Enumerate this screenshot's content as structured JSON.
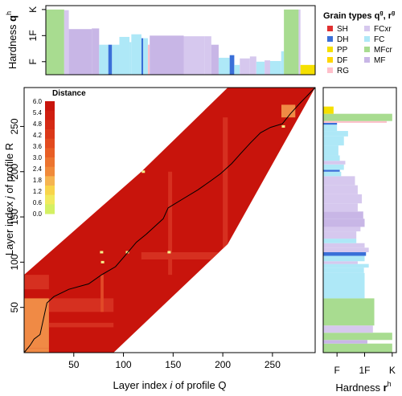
{
  "colors": {
    "SH": "#e03030",
    "DH": "#3a6fd8",
    "PP": "#f5e000",
    "DF": "#ffd700",
    "RG": "#ffc0cb",
    "FCxr": "#d6c8ee",
    "FC": "#aee8f7",
    "MFcr": "#a8dc90",
    "MF": "#c8b6e6",
    "frame": "#888888",
    "path": "#000000"
  },
  "chart_data": [
    {
      "id": "heatmap",
      "type": "heatmap",
      "xlabel_parts": [
        "Layer index ",
        "i",
        " of profile Q"
      ],
      "ylabel_parts": [
        "Layer index ",
        "j",
        " of profile R"
      ],
      "xticks": [
        "50",
        "100",
        "150",
        "200",
        "250"
      ],
      "xtick_values": [
        50,
        100,
        150,
        200,
        250
      ],
      "yticks": [
        "50",
        "100",
        "150",
        "200",
        "250"
      ],
      "ytick_values": [
        50,
        100,
        150,
        200,
        250
      ],
      "xlim": [
        0,
        293
      ],
      "ylim": [
        0,
        293
      ],
      "band_polygon": [
        [
          0,
          0
        ],
        [
          90,
          0
        ],
        [
          205,
          120
        ],
        [
          293,
          293
        ],
        [
          205,
          293
        ],
        [
          118,
          200
        ],
        [
          0,
          86
        ]
      ],
      "base_color": "#c8140c",
      "block_regions": [
        {
          "x": [
            0,
            25
          ],
          "y": [
            5,
            60
          ],
          "color": "#f08a45"
        },
        {
          "x": [
            0,
            25
          ],
          "y": [
            0,
            5
          ],
          "color": "#f08a45"
        },
        {
          "x": [
            259,
            273
          ],
          "y": [
            260,
            274
          ],
          "color": "#f08a45"
        },
        {
          "x": [
            25,
            90
          ],
          "y": [
            45,
            60
          ],
          "color": "#d63020"
        },
        {
          "x": [
            25,
            90
          ],
          "y": [
            28,
            33
          ],
          "color": "#d63020"
        },
        {
          "x": [
            118,
            205
          ],
          "y": [
            103,
            111
          ],
          "color": "#d63020"
        },
        {
          "x": [
            145,
            149
          ],
          "y": [
            86,
            200
          ],
          "color": "#d63020"
        },
        {
          "x": [
            200,
            205
          ],
          "y": [
            100,
            260
          ],
          "color": "#d63020"
        },
        {
          "x": [
            77,
            80
          ],
          "y": [
            45,
            86
          ],
          "color": "#e24a28"
        },
        {
          "x": [
            0,
            25
          ],
          "y": [
            70,
            86
          ],
          "color": "#d63020"
        }
      ],
      "highlight_points": [
        {
          "x": 104,
          "y": 111,
          "color": "#f5f08a"
        },
        {
          "x": 78,
          "y": 111,
          "color": "#f5f08a"
        },
        {
          "x": 146,
          "y": 111,
          "color": "#f5f08a"
        },
        {
          "x": 261,
          "y": 250,
          "color": "#f5f08a"
        },
        {
          "x": 79,
          "y": 100,
          "color": "#f5f08a"
        },
        {
          "x": 120,
          "y": 200,
          "color": "#f5f08a"
        }
      ],
      "path": [
        [
          0,
          0
        ],
        [
          6,
          8
        ],
        [
          10,
          15
        ],
        [
          16,
          20
        ],
        [
          23,
          55
        ],
        [
          30,
          62
        ],
        [
          45,
          70
        ],
        [
          65,
          76
        ],
        [
          78,
          86
        ],
        [
          92,
          95
        ],
        [
          103,
          109
        ],
        [
          113,
          122
        ],
        [
          123,
          131
        ],
        [
          133,
          141
        ],
        [
          140,
          148
        ],
        [
          145,
          160
        ],
        [
          160,
          170
        ],
        [
          175,
          180
        ],
        [
          188,
          190
        ],
        [
          198,
          198
        ],
        [
          209,
          209
        ],
        [
          218,
          220
        ],
        [
          228,
          232
        ],
        [
          238,
          243
        ],
        [
          248,
          249
        ],
        [
          260,
          253
        ],
        [
          268,
          264
        ],
        [
          278,
          276
        ],
        [
          293,
          293
        ]
      ]
    },
    {
      "id": "legend-colorbar",
      "type": "colorbar",
      "title": "Distance",
      "ticks": [
        "6.0",
        "5.4",
        "4.8",
        "4.2",
        "3.6",
        "3.0",
        "2.4",
        "1.8",
        "1.2",
        "0.6",
        "0.0"
      ],
      "tick_values": [
        6.0,
        5.4,
        4.8,
        4.2,
        3.6,
        3.0,
        2.4,
        1.8,
        1.2,
        0.6,
        0.0
      ],
      "segments": [
        "#c8140c",
        "#cf1e10",
        "#d52a14",
        "#db3818",
        "#e24a1e",
        "#e85e25",
        "#ec742f",
        "#f08a3a",
        "#f5b450",
        "#f8d44a",
        "#f1ea5e",
        "#d4f063"
      ]
    },
    {
      "id": "top-profile",
      "type": "bar",
      "ylabel_main": "Hardness ",
      "ylabel_sym": "q",
      "ylabel_sup": "h",
      "yticks": [
        "F",
        "1F",
        "K"
      ],
      "ytick_values": [
        1,
        3,
        5
      ],
      "ylim": [
        0,
        5.3
      ],
      "xlim": [
        0,
        293
      ],
      "layers": [
        {
          "from": 0,
          "to": 20,
          "h": 5.0,
          "grain": "MFcr"
        },
        {
          "from": 20,
          "to": 25,
          "h": 4.95,
          "grain": "FCxr"
        },
        {
          "from": 25,
          "to": 50,
          "h": 3.5,
          "grain": "MF"
        },
        {
          "from": 50,
          "to": 58,
          "h": 3.55,
          "grain": "MF"
        },
        {
          "from": 58,
          "to": 68,
          "h": 2.3,
          "grain": "FC"
        },
        {
          "from": 68,
          "to": 72,
          "h": 2.3,
          "grain": "DH"
        },
        {
          "from": 72,
          "to": 80,
          "h": 2.3,
          "grain": "FC"
        },
        {
          "from": 80,
          "to": 91,
          "h": 2.9,
          "grain": "FC"
        },
        {
          "from": 91,
          "to": 93,
          "h": 2.5,
          "grain": "FC"
        },
        {
          "from": 93,
          "to": 104,
          "h": 3.1,
          "grain": "FC"
        },
        {
          "from": 104,
          "to": 106,
          "h": 2.8,
          "grain": "DH"
        },
        {
          "from": 106,
          "to": 111,
          "h": 2.8,
          "grain": "FC"
        },
        {
          "from": 111,
          "to": 113,
          "h": 2.3,
          "grain": "RG"
        },
        {
          "from": 113,
          "to": 150,
          "h": 3.0,
          "grain": "MF"
        },
        {
          "from": 150,
          "to": 173,
          "h": 2.95,
          "grain": "FCxr"
        },
        {
          "from": 173,
          "to": 180,
          "h": 2.95,
          "grain": "FCxr"
        },
        {
          "from": 180,
          "to": 188,
          "h": 2.3,
          "grain": "MF"
        },
        {
          "from": 188,
          "to": 200,
          "h": 1.3,
          "grain": "FC"
        },
        {
          "from": 200,
          "to": 205,
          "h": 1.5,
          "grain": "DH"
        },
        {
          "from": 205,
          "to": 211,
          "h": 0.75,
          "grain": "FC"
        },
        {
          "from": 211,
          "to": 222,
          "h": 1.25,
          "grain": "FCxr"
        },
        {
          "from": 222,
          "to": 229,
          "h": 1.4,
          "grain": "FCxr"
        },
        {
          "from": 229,
          "to": 238,
          "h": 1.0,
          "grain": "FC"
        },
        {
          "from": 238,
          "to": 244,
          "h": 1.1,
          "grain": "FCxr"
        },
        {
          "from": 244,
          "to": 256,
          "h": 1.05,
          "grain": "FC"
        },
        {
          "from": 256,
          "to": 259,
          "h": 1.8,
          "grain": "FC"
        },
        {
          "from": 259,
          "to": 275,
          "h": 5.0,
          "grain": "MFcr"
        },
        {
          "from": 275,
          "to": 277,
          "h": 5.0,
          "grain": "FCxr"
        },
        {
          "from": 277,
          "to": 293,
          "h": 0.75,
          "grain": "PP"
        }
      ]
    },
    {
      "id": "right-profile",
      "type": "bar",
      "xlabel_main": "Hardness ",
      "xlabel_sym": "r",
      "xlabel_sup": "h",
      "xticks": [
        "F",
        "1F",
        "K"
      ],
      "xtick_values": [
        1,
        3,
        5
      ],
      "xlim": [
        0,
        5.3
      ],
      "ylim": [
        0,
        293
      ],
      "layers": [
        {
          "from": 0,
          "to": 10,
          "h": 5.0,
          "grain": "MFcr"
        },
        {
          "from": 10,
          "to": 14,
          "h": 3.2,
          "grain": "MF"
        },
        {
          "from": 14,
          "to": 22,
          "h": 5.0,
          "grain": "MFcr"
        },
        {
          "from": 22,
          "to": 30,
          "h": 3.6,
          "grain": "FCxr"
        },
        {
          "from": 30,
          "to": 60,
          "h": 3.7,
          "grain": "MFcr"
        },
        {
          "from": 60,
          "to": 88,
          "h": 3.0,
          "grain": "FC"
        },
        {
          "from": 88,
          "to": 94,
          "h": 2.95,
          "grain": "FC"
        },
        {
          "from": 94,
          "to": 98,
          "h": 3.3,
          "grain": "FC"
        },
        {
          "from": 98,
          "to": 101,
          "h": 2.5,
          "grain": "FCxr"
        },
        {
          "from": 101,
          "to": 107,
          "h": 3.0,
          "grain": "FC"
        },
        {
          "from": 107,
          "to": 111,
          "h": 3.1,
          "grain": "DH"
        },
        {
          "from": 111,
          "to": 116,
          "h": 3.3,
          "grain": "FCxr"
        },
        {
          "from": 116,
          "to": 121,
          "h": 3.0,
          "grain": "FCxr"
        },
        {
          "from": 121,
          "to": 126,
          "h": 2.4,
          "grain": "FC"
        },
        {
          "from": 126,
          "to": 134,
          "h": 2.4,
          "grain": "FCxr"
        },
        {
          "from": 134,
          "to": 139,
          "h": 2.7,
          "grain": "FCxr"
        },
        {
          "from": 139,
          "to": 148,
          "h": 3.0,
          "grain": "MF"
        },
        {
          "from": 148,
          "to": 156,
          "h": 2.9,
          "grain": "MF"
        },
        {
          "from": 156,
          "to": 165,
          "h": 2.5,
          "grain": "FCxr"
        },
        {
          "from": 165,
          "to": 175,
          "h": 2.8,
          "grain": "FCxr"
        },
        {
          "from": 175,
          "to": 185,
          "h": 2.5,
          "grain": "FCxr"
        },
        {
          "from": 185,
          "to": 195,
          "h": 2.3,
          "grain": "FCxr"
        },
        {
          "from": 195,
          "to": 200,
          "h": 1.3,
          "grain": "FC"
        },
        {
          "from": 200,
          "to": 202,
          "h": 1.2,
          "grain": "DH"
        },
        {
          "from": 202,
          "to": 208,
          "h": 1.5,
          "grain": "FC"
        },
        {
          "from": 208,
          "to": 212,
          "h": 1.6,
          "grain": "FCxr"
        },
        {
          "from": 212,
          "to": 218,
          "h": 1.2,
          "grain": "FC"
        },
        {
          "from": 218,
          "to": 229,
          "h": 1.1,
          "grain": "FC"
        },
        {
          "from": 229,
          "to": 239,
          "h": 1.5,
          "grain": "FC"
        },
        {
          "from": 239,
          "to": 245,
          "h": 1.8,
          "grain": "FC"
        },
        {
          "from": 245,
          "to": 252,
          "h": 1.0,
          "grain": "FC"
        },
        {
          "from": 252,
          "to": 254,
          "h": 1.0,
          "grain": "DH"
        },
        {
          "from": 254,
          "to": 256,
          "h": 4.6,
          "grain": "RG"
        },
        {
          "from": 256,
          "to": 264,
          "h": 5.0,
          "grain": "MFcr"
        },
        {
          "from": 264,
          "to": 272,
          "h": 0.75,
          "grain": "PP"
        }
      ]
    }
  ],
  "legend": {
    "title_main": "Grain types ",
    "title_q": "q",
    "title_r": "r",
    "title_sup": "g",
    "title_sep": ", ",
    "items": [
      {
        "label": "SH",
        "key": "SH"
      },
      {
        "label": "FCxr",
        "key": "FCxr"
      },
      {
        "label": "DH",
        "key": "DH"
      },
      {
        "label": "FC",
        "key": "FC"
      },
      {
        "label": "PP",
        "key": "PP"
      },
      {
        "label": "MFcr",
        "key": "MFcr"
      },
      {
        "label": "DF",
        "key": "DF"
      },
      {
        "label": "MF",
        "key": "MF"
      },
      {
        "label": "RG",
        "key": "RG"
      }
    ]
  }
}
